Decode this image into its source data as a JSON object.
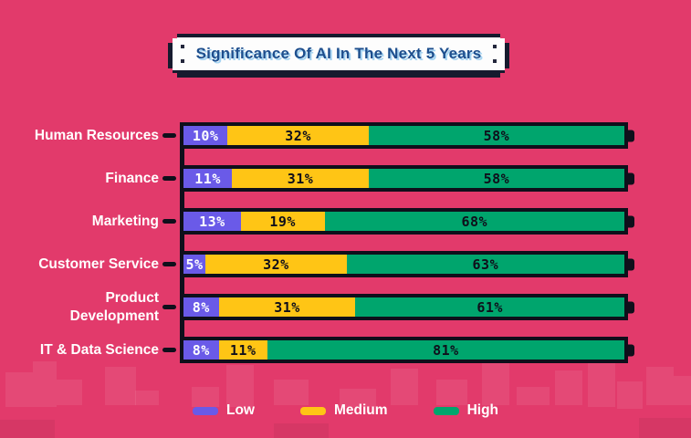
{
  "colors": {
    "background_pink": "#E23A6B",
    "bar_outline_black": "#0F0F1B",
    "low_purple": "#6A5AE8",
    "medium_yellow": "#FFC515",
    "high_green": "#00A56D",
    "title_navy": "#1D4E8D",
    "title_shadow_blue": "#96CDF0",
    "label_white": "#FFFFFF"
  },
  "chart_data": {
    "type": "bar",
    "stacked": true,
    "orientation": "horizontal",
    "title": "Significance Of AI In The Next 5 Years",
    "categories": [
      "Human Resources",
      "Finance",
      "Marketing",
      "Customer Service",
      "Product Development",
      "IT & Data Science"
    ],
    "series": [
      {
        "name": "Low",
        "color": "#6A5AE8",
        "values": [
          10,
          11,
          13,
          5,
          8,
          8
        ]
      },
      {
        "name": "Medium",
        "color": "#FFC515",
        "values": [
          32,
          31,
          19,
          32,
          31,
          11
        ]
      },
      {
        "name": "High",
        "color": "#00A56D",
        "values": [
          58,
          58,
          68,
          63,
          61,
          81
        ]
      }
    ],
    "value_suffix": "%",
    "xlim": [
      0,
      100
    ],
    "grid": false,
    "legend_position": "bottom",
    "bar_style": "battery"
  }
}
